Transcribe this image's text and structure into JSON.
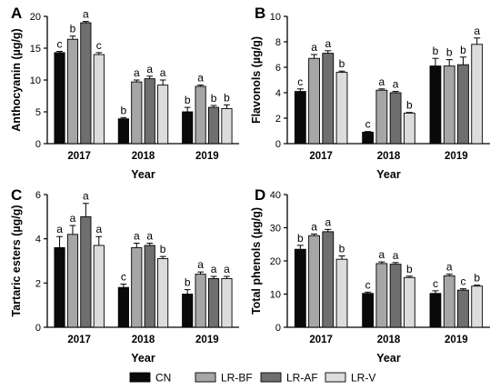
{
  "colors": {
    "CN": "#0a0a0a",
    "LR-BF": "#a6a6a6",
    "LR-AF": "#6f6f6f",
    "LR-V": "#dcdcdc",
    "axis": "#000000"
  },
  "legend": [
    "CN",
    "LR-BF",
    "LR-AF",
    "LR-V"
  ],
  "chart_data": [
    {
      "panel": "A",
      "type": "bar",
      "xlabel": "Year",
      "ylabel": "Anthocyanin (µg/g)",
      "categories": [
        "2017",
        "2018",
        "2019"
      ],
      "ylim": [
        0,
        20
      ],
      "yticks": [
        0,
        5,
        10,
        15,
        20
      ],
      "series": [
        {
          "name": "CN",
          "values": [
            14.3,
            3.9,
            5.0
          ],
          "errors": [
            0.2,
            0.2,
            0.7
          ],
          "letters": [
            "c",
            "b",
            "b"
          ]
        },
        {
          "name": "LR-BF",
          "values": [
            16.4,
            9.7,
            9.0
          ],
          "errors": [
            0.5,
            0.3,
            0.2
          ],
          "letters": [
            "b",
            "a",
            "a"
          ]
        },
        {
          "name": "LR-AF",
          "values": [
            19.0,
            10.2,
            5.7
          ],
          "errors": [
            0.2,
            0.4,
            0.3
          ],
          "letters": [
            "a",
            "a",
            "b"
          ]
        },
        {
          "name": "LR-V",
          "values": [
            14.0,
            9.2,
            5.5
          ],
          "errors": [
            0.3,
            0.8,
            0.6
          ],
          "letters": [
            "c",
            "a",
            "b"
          ]
        }
      ]
    },
    {
      "panel": "B",
      "type": "bar",
      "xlabel": "Year",
      "ylabel": "Flavonols (µg/g)",
      "categories": [
        "2017",
        "2018",
        "2019"
      ],
      "ylim": [
        0,
        10
      ],
      "yticks": [
        0,
        2,
        4,
        6,
        8,
        10
      ],
      "series": [
        {
          "name": "CN",
          "values": [
            4.1,
            0.9,
            6.1
          ],
          "errors": [
            0.2,
            0.05,
            0.6
          ],
          "letters": [
            "c",
            "c",
            "b"
          ]
        },
        {
          "name": "LR-BF",
          "values": [
            6.7,
            4.2,
            6.1
          ],
          "errors": [
            0.3,
            0.1,
            0.5
          ],
          "letters": [
            "a",
            "a",
            "b"
          ]
        },
        {
          "name": "LR-AF",
          "values": [
            7.1,
            4.0,
            6.2
          ],
          "errors": [
            0.2,
            0.1,
            0.6
          ],
          "letters": [
            "a",
            "a",
            "b"
          ]
        },
        {
          "name": "LR-V",
          "values": [
            5.6,
            2.4,
            7.8
          ],
          "errors": [
            0.1,
            0.05,
            0.5
          ],
          "letters": [
            "b",
            "b",
            "a"
          ]
        }
      ]
    },
    {
      "panel": "C",
      "type": "bar",
      "xlabel": "Year",
      "ylabel": "Tartaric esters (µg/g)",
      "categories": [
        "2017",
        "2018",
        "2019"
      ],
      "ylim": [
        0,
        6
      ],
      "yticks": [
        0,
        2,
        4,
        6
      ],
      "series": [
        {
          "name": "CN",
          "values": [
            3.6,
            1.8,
            1.5
          ],
          "errors": [
            0.5,
            0.15,
            0.2
          ],
          "letters": [
            "a",
            "c",
            "b"
          ]
        },
        {
          "name": "LR-BF",
          "values": [
            4.2,
            3.6,
            2.4
          ],
          "errors": [
            0.4,
            0.2,
            0.1
          ],
          "letters": [
            "a",
            "a",
            "a"
          ]
        },
        {
          "name": "LR-AF",
          "values": [
            5.0,
            3.7,
            2.2
          ],
          "errors": [
            0.6,
            0.1,
            0.1
          ],
          "letters": [
            "a",
            "a",
            "a"
          ]
        },
        {
          "name": "LR-V",
          "values": [
            3.7,
            3.1,
            2.2
          ],
          "errors": [
            0.4,
            0.1,
            0.1
          ],
          "letters": [
            "a",
            "b",
            "a"
          ]
        }
      ]
    },
    {
      "panel": "D",
      "type": "bar",
      "xlabel": "Year",
      "ylabel": "Total phenols (µg/g)",
      "categories": [
        "2017",
        "2018",
        "2019"
      ],
      "ylim": [
        0,
        40
      ],
      "yticks": [
        0,
        10,
        20,
        30,
        40
      ],
      "series": [
        {
          "name": "CN",
          "values": [
            23.5,
            10.2,
            10.2
          ],
          "errors": [
            1.2,
            0.4,
            0.8
          ],
          "letters": [
            "b",
            "c",
            "c"
          ]
        },
        {
          "name": "LR-BF",
          "values": [
            27.6,
            19.2,
            15.5
          ],
          "errors": [
            0.5,
            0.5,
            0.5
          ],
          "letters": [
            "a",
            "a",
            "a"
          ]
        },
        {
          "name": "LR-AF",
          "values": [
            28.8,
            19.0,
            11.2
          ],
          "errors": [
            0.7,
            0.5,
            0.4
          ],
          "letters": [
            "a",
            "a",
            "c"
          ]
        },
        {
          "name": "LR-V",
          "values": [
            20.5,
            15.0,
            12.4
          ],
          "errors": [
            1.0,
            0.4,
            0.3
          ],
          "letters": [
            "b",
            "b",
            "b"
          ]
        }
      ]
    }
  ]
}
